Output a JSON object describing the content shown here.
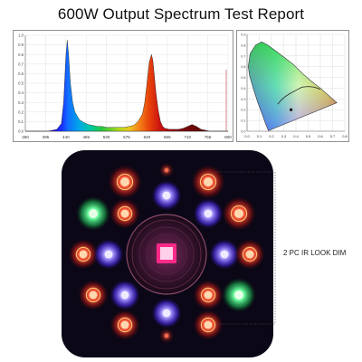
{
  "title": "600W Output Spectrum Test Report",
  "chart_data": [
    {
      "type": "line",
      "xlim": [
        350,
        800
      ],
      "ylim": [
        0,
        1
      ],
      "grid": true,
      "x_ticks": [
        "350",
        "395",
        "440",
        "485",
        "530",
        "575",
        "620",
        "665",
        "710",
        "755",
        "800"
      ],
      "y_ticks": [
        "1.0",
        "0.9",
        "0.8",
        "0.7",
        "0.6",
        "0.5",
        "0.4",
        "0.3",
        "0.2",
        "0.1",
        "0.0"
      ],
      "series": [
        {
          "x": [
            350,
            400,
            420,
            430,
            435,
            440,
            443,
            446,
            450,
            455,
            460,
            470,
            480,
            490,
            500,
            510,
            520,
            530,
            540,
            550,
            560,
            570,
            580,
            590,
            600,
            610,
            615,
            620,
            625,
            630,
            633,
            636,
            640,
            645,
            650,
            655,
            660,
            670,
            680,
            690,
            700,
            710,
            720,
            730,
            740,
            750,
            760,
            770,
            780,
            790,
            800
          ],
          "values": [
            0.0,
            0.0,
            0.02,
            0.08,
            0.3,
            0.78,
            0.95,
            0.8,
            0.5,
            0.3,
            0.2,
            0.12,
            0.09,
            0.07,
            0.06,
            0.05,
            0.05,
            0.04,
            0.04,
            0.04,
            0.04,
            0.04,
            0.05,
            0.06,
            0.1,
            0.18,
            0.3,
            0.5,
            0.72,
            0.8,
            0.74,
            0.6,
            0.4,
            0.22,
            0.1,
            0.05,
            0.03,
            0.02,
            0.02,
            0.02,
            0.03,
            0.05,
            0.07,
            0.05,
            0.02,
            0.01,
            0.0,
            0.0,
            0.0,
            0.0,
            0.0
          ]
        }
      ]
    },
    {
      "type": "scatter",
      "xlim": [
        0,
        0.8
      ],
      "ylim": [
        0,
        0.9
      ],
      "grid": true,
      "x_ticks": [
        "0.0",
        "0.1",
        "0.2",
        "0.3",
        "0.4",
        "0.5",
        "0.6",
        "0.7",
        "0.8"
      ],
      "y_ticks": [
        "0.9",
        "0.8",
        "0.7",
        "0.6",
        "0.5",
        "0.4",
        "0.3",
        "0.2",
        "0.1",
        "0.0"
      ],
      "series": [
        {
          "x": [
            0.36
          ],
          "values": [
            0.2
          ]
        }
      ]
    }
  ],
  "annotation": {
    "ir_label": "2 PC IR LOOK DIM"
  }
}
